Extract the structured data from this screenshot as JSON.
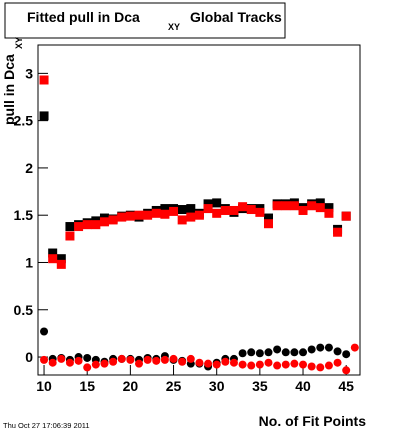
{
  "chart_data": {
    "type": "scatter",
    "title": "Fitted pull in Dca",
    "title_subscript": "XY",
    "title_suffix": "Global Tracks",
    "ylabel": "pull in Dca",
    "ylabel_subscript": "XY",
    "xlabel": "No. of Fit Points",
    "timestamp": "Thu Oct 27 17:06:39 2011",
    "x": [
      10,
      11,
      12,
      13,
      14,
      15,
      16,
      17,
      18,
      19,
      20,
      21,
      22,
      23,
      24,
      25,
      26,
      27,
      28,
      29,
      30,
      31,
      32,
      33,
      34,
      35,
      36,
      37,
      38,
      39,
      40,
      41,
      42,
      43,
      44,
      45,
      46
    ],
    "xlim": [
      9.3,
      46.6
    ],
    "xticks": [
      10,
      15,
      20,
      25,
      30,
      35,
      40,
      45
    ],
    "ylim": [
      -0.19,
      3.3
    ],
    "yticks": [
      0,
      0.5,
      1,
      1.5,
      2,
      2.5,
      3
    ],
    "series": [
      {
        "color": "#000000",
        "marker": "square",
        "values": [
          2.55,
          1.1,
          1.04,
          1.38,
          1.4,
          1.42,
          1.44,
          1.47,
          1.46,
          1.49,
          1.5,
          1.48,
          1.52,
          1.55,
          1.57,
          1.57,
          1.56,
          1.57,
          1.52,
          1.62,
          1.63,
          1.57,
          1.53,
          1.57,
          1.57,
          1.57,
          1.47,
          1.62,
          1.62,
          1.63,
          1.58,
          1.62,
          1.63,
          1.58,
          1.35,
          1.49,
          null
        ]
      },
      {
        "color": "#ff0000",
        "marker": "square",
        "values": [
          2.93,
          1.04,
          0.98,
          1.28,
          1.38,
          1.4,
          1.4,
          1.43,
          1.45,
          1.48,
          1.49,
          1.5,
          1.5,
          1.52,
          1.51,
          1.54,
          1.45,
          1.48,
          1.5,
          1.57,
          1.52,
          1.55,
          1.55,
          1.59,
          1.56,
          1.53,
          1.41,
          1.6,
          1.6,
          1.6,
          1.55,
          1.6,
          1.58,
          1.52,
          1.32,
          1.49,
          null
        ]
      },
      {
        "color": "#000000",
        "marker": "circle",
        "values": [
          0.27,
          -0.02,
          -0.01,
          -0.03,
          0.0,
          -0.01,
          -0.03,
          -0.05,
          -0.02,
          -0.02,
          -0.02,
          -0.03,
          -0.01,
          -0.02,
          0.01,
          -0.03,
          -0.04,
          -0.07,
          -0.07,
          -0.1,
          -0.06,
          -0.02,
          -0.02,
          0.04,
          0.05,
          0.04,
          0.05,
          0.08,
          0.05,
          0.05,
          0.05,
          0.08,
          0.1,
          0.1,
          0.06,
          0.03,
          null
        ]
      },
      {
        "color": "#ff0000",
        "marker": "circle",
        "values": [
          -0.03,
          -0.06,
          -0.02,
          -0.06,
          -0.04,
          -0.11,
          -0.08,
          -0.07,
          -0.05,
          -0.02,
          -0.03,
          -0.07,
          -0.03,
          -0.04,
          -0.03,
          -0.02,
          -0.05,
          -0.02,
          -0.06,
          -0.07,
          -0.08,
          -0.05,
          -0.06,
          -0.08,
          -0.09,
          -0.08,
          -0.06,
          -0.09,
          -0.08,
          -0.07,
          -0.08,
          -0.1,
          -0.11,
          -0.09,
          -0.06,
          -0.14,
          0.1
        ]
      }
    ]
  }
}
